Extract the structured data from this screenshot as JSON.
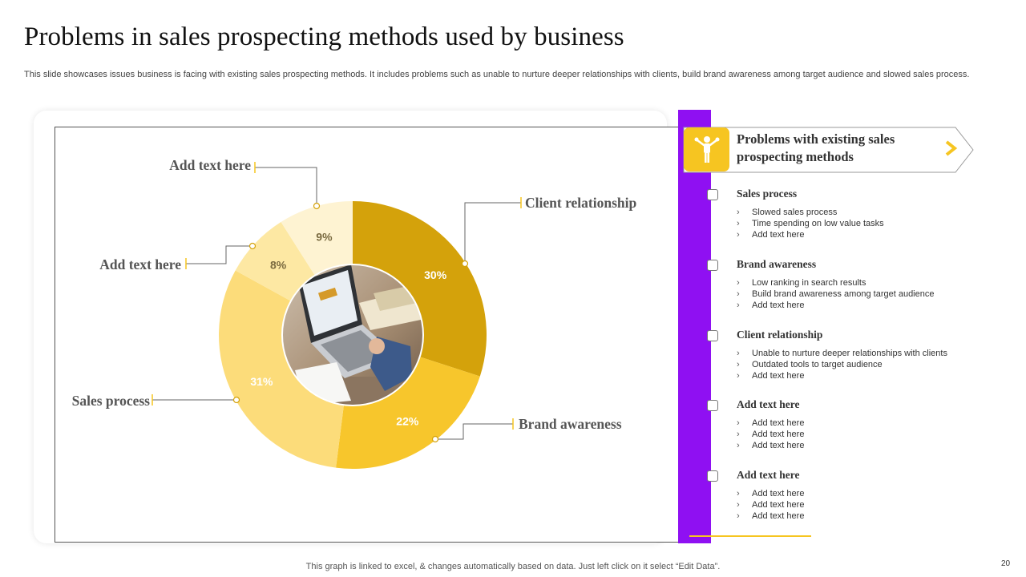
{
  "slide": {
    "title": "Problems in sales prospecting methods used by business",
    "subtitle": "This slide showcases issues business is facing with existing sales prospecting methods. It includes problems such as unable to nurture deeper relationships with clients, build brand awareness among target audience and slowed sales process.",
    "footer": "This graph is linked to excel, & changes automatically based on data. Just left click on it select “Edit Data”.",
    "page_number": "20"
  },
  "colors": {
    "accent_purple": "#8f10f2",
    "accent_yellow": "#f6c521",
    "slice_client": "#d4a20b",
    "slice_brand": "#f7c62c",
    "slice_sales": "#fcdc7a",
    "slice_other1": "#fde8a3",
    "slice_other2": "#fef3d2"
  },
  "chart_data": {
    "type": "pie",
    "variant": "donut",
    "title": "",
    "slices": [
      {
        "label": "Client relationship",
        "value": 30,
        "display": "30%",
        "color": "#d4a20b",
        "label_color": "#ffffff"
      },
      {
        "label": "Brand awareness",
        "value": 22,
        "display": "22%",
        "color": "#f7c62c",
        "label_color": "#ffffff"
      },
      {
        "label": "Sales process",
        "value": 31,
        "display": "31%",
        "color": "#fcdc7a",
        "label_color": "#ffffff"
      },
      {
        "label": "Add text here",
        "value": 8,
        "display": "8%",
        "color": "#fde8a3",
        "label_color": "#7a6a40"
      },
      {
        "label": "Add text here",
        "value": 9,
        "display": "9%",
        "color": "#fef3d2",
        "label_color": "#7a6a40"
      }
    ],
    "center_image": "laptop-photo"
  },
  "panel": {
    "header_title": "Problems with existing sales prospecting methods",
    "header_icon": "presenter-icon",
    "problems": [
      {
        "title": "Sales process",
        "items": [
          "Slowed sales process",
          "Time spending on low value tasks",
          "Add text here"
        ]
      },
      {
        "title": "Brand awareness",
        "items": [
          "Low ranking in search results",
          "Build brand awareness among target audience",
          "Add text here"
        ]
      },
      {
        "title": "Client relationship",
        "items": [
          "Unable to nurture deeper relationships with clients",
          "Outdated tools to target audience",
          "Add text here"
        ]
      },
      {
        "title": "Add text here",
        "items": [
          "Add text here",
          "Add text here",
          "Add text here"
        ]
      },
      {
        "title": "Add text here",
        "items": [
          "Add text here",
          "Add text here",
          "Add text here"
        ]
      }
    ]
  }
}
